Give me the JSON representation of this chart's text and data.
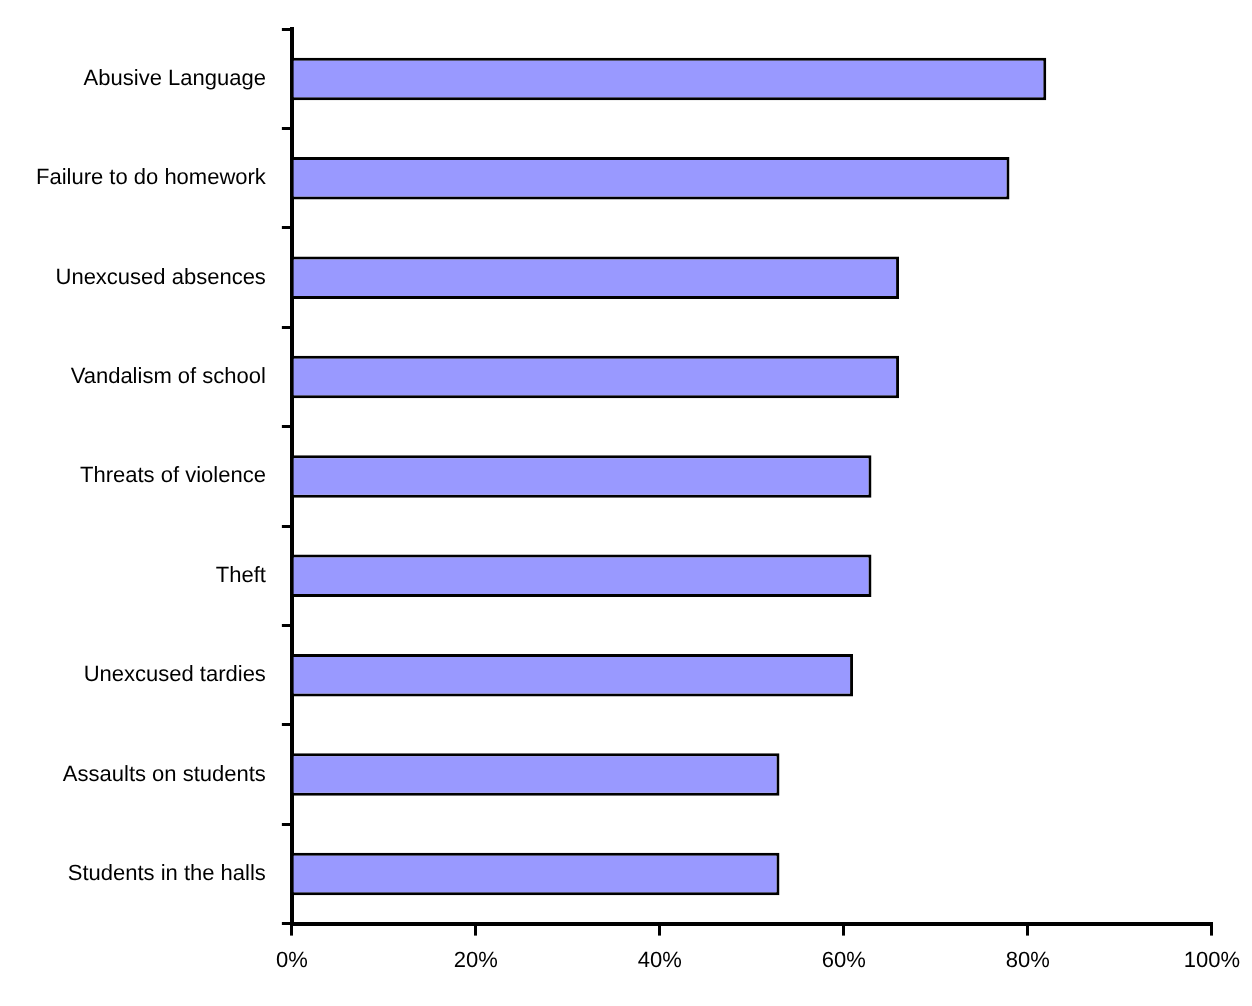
{
  "chart_data": {
    "type": "bar",
    "orientation": "horizontal",
    "categories": [
      "Abusive Language",
      "Failure to do homework",
      "Unexcused absences",
      "Vandalism of school",
      "Threats of violence",
      "Theft",
      "Unexcused tardies",
      "Assaults on students",
      "Students in the halls"
    ],
    "values": [
      82,
      78,
      66,
      66,
      63,
      63,
      61,
      53,
      53
    ],
    "color": "#9999ff",
    "xlim": [
      0,
      100
    ],
    "xticks": [
      {
        "value": 0,
        "label": "0%"
      },
      {
        "value": 20,
        "label": "20%"
      },
      {
        "value": 40,
        "label": "40%"
      },
      {
        "value": 60,
        "label": "60%"
      },
      {
        "value": 80,
        "label": "80%"
      },
      {
        "value": 100,
        "label": "100%"
      }
    ],
    "grid": false,
    "legend": false
  }
}
